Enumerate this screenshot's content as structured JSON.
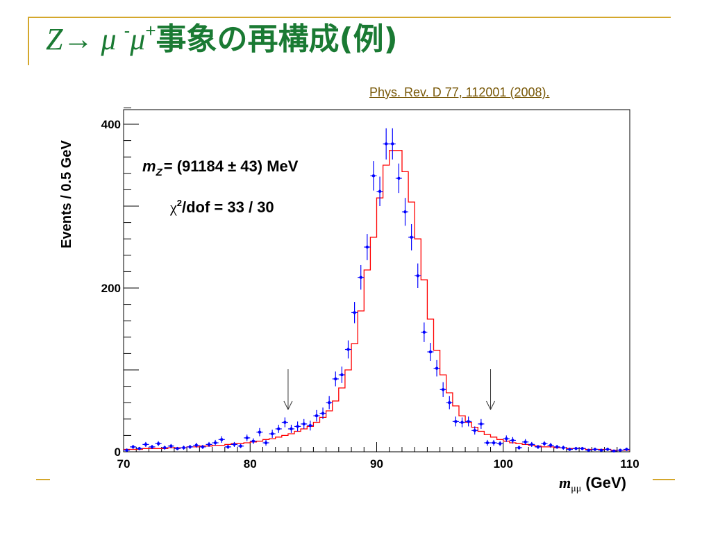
{
  "slide": {
    "title_z": "Z",
    "title_arrow": "→",
    "title_mu1": " μ ",
    "title_minus": "-",
    "title_mu2": "μ",
    "title_plus": "+",
    "title_jp": "事象の再構成(例)",
    "citation": "Phys. Rev. D 77, 112001 (2008).",
    "accent_color": "#1a7a33",
    "rule_color": "#d4a72c",
    "citation_color": "#7a5a0a"
  },
  "chart_data": {
    "type": "scatter",
    "ylabel": "Events / 0.5 GeV",
    "xlabel_symbol": "m",
    "xlabel_sub": "μμ",
    "xlabel_unit": "(GeV)",
    "xlim": [
      70,
      110
    ],
    "ylim": [
      0,
      420
    ],
    "x_ticks": [
      70,
      80,
      90,
      100,
      110
    ],
    "y_ticks": [
      0,
      200,
      400
    ],
    "grid": false,
    "annotation_mass_symbol": "m",
    "annotation_mass_sub": "Z",
    "annotation_mass_value": "= (91184 ± 43) MeV",
    "annotation_chi_symbol": "χ",
    "annotation_chi_sup": "2",
    "annotation_chi_value": "/dof = 33 / 30",
    "fit_window_arrows": [
      83,
      99
    ],
    "data_color": "#0000ff",
    "fit_color": "#ff0000",
    "points": [
      [
        70.25,
        2,
        2
      ],
      [
        70.75,
        6,
        2.5
      ],
      [
        71.25,
        4,
        2
      ],
      [
        71.75,
        9,
        3
      ],
      [
        72.25,
        6,
        2.5
      ],
      [
        72.75,
        10,
        3
      ],
      [
        73.25,
        5,
        2.5
      ],
      [
        73.75,
        7,
        2.5
      ],
      [
        74.25,
        4,
        2
      ],
      [
        74.75,
        5,
        2.5
      ],
      [
        75.25,
        6,
        2.5
      ],
      [
        75.75,
        8,
        3
      ],
      [
        76.25,
        6,
        2.5
      ],
      [
        76.75,
        9,
        3
      ],
      [
        77.25,
        11,
        3.5
      ],
      [
        77.75,
        15,
        4
      ],
      [
        78.25,
        6,
        2.5
      ],
      [
        78.75,
        9,
        3
      ],
      [
        79.25,
        7,
        2.5
      ],
      [
        79.75,
        17,
        4
      ],
      [
        80.25,
        13,
        3.5
      ],
      [
        80.75,
        24,
        5
      ],
      [
        81.25,
        11,
        3.5
      ],
      [
        81.75,
        22,
        5
      ],
      [
        82.25,
        28,
        5
      ],
      [
        82.75,
        36,
        6
      ],
      [
        83.25,
        28,
        5
      ],
      [
        83.75,
        31,
        6
      ],
      [
        84.25,
        34,
        6
      ],
      [
        84.75,
        32,
        6
      ],
      [
        85.25,
        44,
        7
      ],
      [
        85.75,
        47,
        7
      ],
      [
        86.25,
        60,
        8
      ],
      [
        86.75,
        89,
        9
      ],
      [
        87.25,
        94,
        10
      ],
      [
        87.75,
        125,
        11
      ],
      [
        88.25,
        170,
        13
      ],
      [
        88.75,
        213,
        15
      ],
      [
        89.25,
        250,
        16
      ],
      [
        89.75,
        337,
        18
      ],
      [
        90.25,
        318,
        18
      ],
      [
        90.75,
        376,
        19
      ],
      [
        91.25,
        376,
        19
      ],
      [
        91.75,
        334,
        18
      ],
      [
        92.25,
        293,
        17
      ],
      [
        92.75,
        262,
        16
      ],
      [
        93.25,
        215,
        15
      ],
      [
        93.75,
        146,
        12
      ],
      [
        94.25,
        122,
        11
      ],
      [
        94.75,
        102,
        10
      ],
      [
        95.25,
        76,
        9
      ],
      [
        95.75,
        60,
        8
      ],
      [
        96.25,
        37,
        6
      ],
      [
        96.75,
        36,
        6
      ],
      [
        97.25,
        37,
        6
      ],
      [
        97.75,
        26,
        5
      ],
      [
        98.25,
        34,
        6
      ],
      [
        98.75,
        11,
        3.5
      ],
      [
        99.25,
        11,
        3.5
      ],
      [
        99.75,
        10,
        3
      ],
      [
        100.25,
        16,
        4
      ],
      [
        100.75,
        14,
        4
      ],
      [
        101.25,
        5,
        2.5
      ],
      [
        101.75,
        12,
        3.5
      ],
      [
        102.25,
        9,
        3
      ],
      [
        102.75,
        6,
        2.5
      ],
      [
        103.25,
        10,
        3
      ],
      [
        103.75,
        8,
        3
      ],
      [
        104.25,
        6,
        2.5
      ],
      [
        104.75,
        5,
        2.5
      ],
      [
        105.25,
        3,
        2
      ],
      [
        105.75,
        4,
        2
      ],
      [
        106.25,
        4,
        2
      ],
      [
        106.75,
        2,
        1.5
      ],
      [
        107.25,
        3,
        2
      ],
      [
        107.75,
        2,
        1.5
      ],
      [
        108.25,
        3,
        2
      ],
      [
        108.75,
        1,
        1
      ],
      [
        109.25,
        2,
        1.5
      ],
      [
        109.75,
        3,
        2
      ]
    ],
    "fit": [
      3,
      3,
      3,
      4,
      4,
      4,
      4,
      5,
      5,
      5,
      6,
      6,
      7,
      7,
      8,
      8,
      9,
      10,
      10,
      11,
      12,
      13,
      15,
      16,
      18,
      20,
      22,
      25,
      28,
      31,
      36,
      42,
      50,
      62,
      78,
      100,
      132,
      172,
      222,
      262,
      310,
      350,
      368,
      368,
      342,
      305,
      260,
      210,
      162,
      124,
      94,
      72,
      56,
      44,
      36,
      30,
      25,
      21,
      18,
      15,
      13,
      11,
      10,
      9,
      8,
      7,
      6,
      6,
      5,
      5,
      4,
      4,
      4,
      3,
      3,
      3,
      3,
      2,
      2,
      2
    ]
  }
}
